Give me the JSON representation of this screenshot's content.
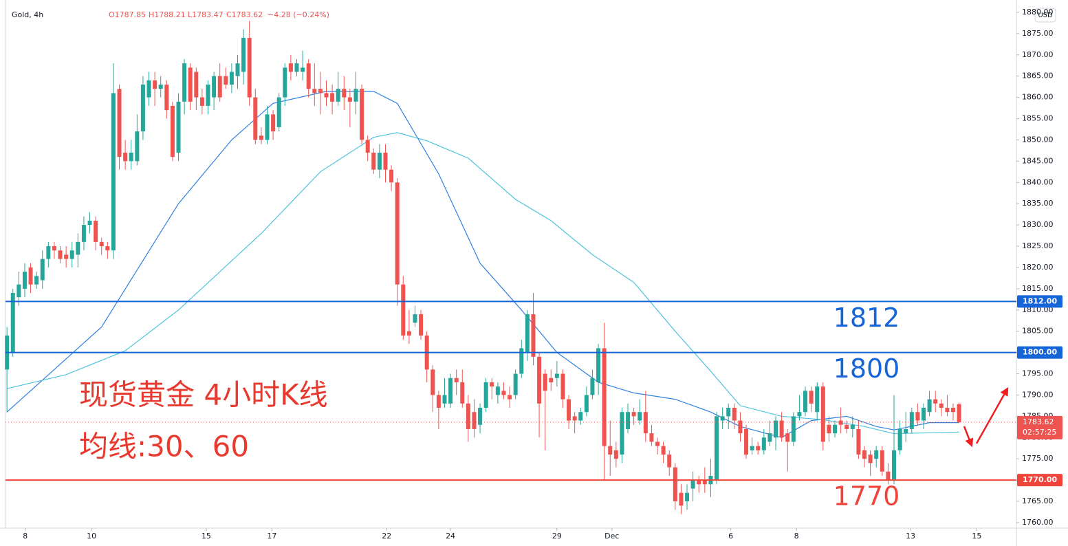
{
  "chart_data": {
    "type": "candlestick",
    "title": "Gold, 4h",
    "ohlc_legend": [
      "O1787.85",
      "H1788.21",
      "L1783.47",
      "C1783.62",
      "−4.28 (−0.24%)"
    ],
    "currency": "USD",
    "annotations": [
      "现货黄金 4小时K线",
      "均线:30、60"
    ],
    "up_color": "#26a69a",
    "down_color": "#ef5350",
    "grid": false,
    "xlim": [
      -0.25,
      170.7
    ],
    "ylim": [
      1758.7,
      1882.9
    ],
    "xticks": [
      {
        "value": 3.1,
        "label": "8"
      },
      {
        "value": 14.3,
        "label": "10"
      },
      {
        "value": 33.7,
        "label": "15"
      },
      {
        "value": 44.8,
        "label": "17"
      },
      {
        "value": 64.2,
        "label": "22"
      },
      {
        "value": 75,
        "label": "24"
      },
      {
        "value": 93,
        "label": "29"
      },
      {
        "value": 102.3,
        "label": "Dec"
      },
      {
        "value": 122.4,
        "label": "6"
      },
      {
        "value": 133.5,
        "label": "8"
      },
      {
        "value": 152.8,
        "label": "13"
      },
      {
        "value": 164,
        "label": "15"
      }
    ],
    "yticks": [
      {
        "value": 1760,
        "label": "1760.00"
      },
      {
        "value": 1765,
        "label": "1765.00"
      },
      {
        "value": 1770,
        "label": "1770.00"
      },
      {
        "value": 1775,
        "label": "1775.00"
      },
      {
        "value": 1780,
        "label": "1780.00"
      },
      {
        "value": 1785,
        "label": "1785.00"
      },
      {
        "value": 1790,
        "label": "1790.00"
      },
      {
        "value": 1795,
        "label": "1795.00"
      },
      {
        "value": 1800,
        "label": "1800.00"
      },
      {
        "value": 1805,
        "label": "1805.00"
      },
      {
        "value": 1810,
        "label": "1810.00"
      },
      {
        "value": 1815,
        "label": "1815.00"
      },
      {
        "value": 1820,
        "label": "1820.00"
      },
      {
        "value": 1825,
        "label": "1825.00"
      },
      {
        "value": 1830,
        "label": "1830.00"
      },
      {
        "value": 1835,
        "label": "1835.00"
      },
      {
        "value": 1840,
        "label": "1840.00"
      },
      {
        "value": 1845,
        "label": "1845.00"
      },
      {
        "value": 1850,
        "label": "1850.00"
      },
      {
        "value": 1855,
        "label": "1855.00"
      },
      {
        "value": 1860,
        "label": "1860.00"
      },
      {
        "value": 1865,
        "label": "1865.00"
      },
      {
        "value": 1870,
        "label": "1870.00"
      },
      {
        "value": 1875,
        "label": "1875.00"
      },
      {
        "value": 1880,
        "label": "1880.00"
      }
    ],
    "x": [
      0,
      1,
      2,
      3,
      4,
      5,
      6,
      7,
      8,
      9,
      10,
      11,
      12,
      13,
      14,
      15,
      16,
      17,
      18,
      19,
      20,
      21,
      22,
      23,
      24,
      25,
      26,
      27,
      28,
      29,
      30,
      31,
      32,
      33,
      34,
      35,
      36,
      37,
      38,
      39,
      40,
      41,
      42,
      43,
      44,
      45,
      46,
      47,
      48,
      49,
      50,
      51,
      52,
      53,
      54,
      55,
      56,
      57,
      58,
      59,
      60,
      61,
      62,
      63,
      64,
      65,
      66,
      67,
      68,
      69,
      70,
      71,
      72,
      73,
      74,
      75,
      76,
      77,
      78,
      79,
      80,
      81,
      82,
      83,
      84,
      85,
      86,
      87,
      88,
      89,
      90,
      91,
      92,
      93,
      94,
      95,
      96,
      97,
      98,
      99,
      100,
      101,
      102,
      103,
      104,
      105,
      106,
      107,
      108,
      109,
      110,
      111,
      112,
      113,
      114,
      115,
      116,
      117,
      118,
      119,
      120,
      121,
      122,
      123,
      124,
      125,
      126,
      127,
      128,
      129,
      130,
      131,
      132,
      133,
      134,
      135,
      136,
      137,
      138,
      139,
      140,
      141,
      142,
      143,
      144,
      145,
      146,
      147,
      148,
      149,
      150,
      151,
      152,
      153,
      154,
      155,
      156,
      157,
      158,
      159,
      160,
      161
    ],
    "open": [
      1796,
      1800,
      1813,
      1815,
      1820,
      1816,
      1817,
      1822,
      1825,
      1824,
      1823,
      1822,
      1823,
      1826,
      1830,
      1831,
      1826,
      1825,
      1824,
      1862,
      1847,
      1845,
      1845,
      1852,
      1860,
      1864,
      1862,
      1863,
      1858,
      1847,
      1859,
      1867,
      1866,
      1860,
      1858,
      1860,
      1865,
      1865,
      1863,
      1865,
      1866,
      1874,
      1860,
      1851,
      1850,
      1856,
      1853,
      1860,
      1868,
      1866,
      1866,
      1868,
      1862,
      1862,
      1861,
      1861,
      1859,
      1862,
      1860,
      1859,
      1862,
      1850,
      1847,
      1843,
      1847,
      1843,
      1840,
      1816,
      1805,
      1807,
      1809,
      1804,
      1796,
      1790,
      1788,
      1788,
      1794,
      1793,
      1788,
      1786,
      1783,
      1787,
      1793,
      1790,
      1791,
      1790,
      1790,
      1795,
      1800,
      1809,
      1799,
      1795,
      1794,
      1794,
      1795,
      1789,
      1785,
      1784,
      1786,
      1790,
      1793,
      1801,
      1778,
      1777,
      1776,
      1782,
      1786,
      1784,
      1786,
      1781,
      1779,
      1778,
      1776,
      1773,
      1767,
      1765,
      1768,
      1770,
      1770,
      1769,
      1770,
      1784,
      1785,
      1787,
      1784,
      1782,
      1777,
      1778,
      1777,
      1779,
      1780,
      1784,
      1781,
      1779,
      1785,
      1786,
      1791,
      1786,
      1792,
      1783,
      1781,
      1784,
      1783,
      1782,
      1782,
      1777,
      1776,
      1775,
      1777,
      1772,
      1770,
      1777,
      1781,
      1782,
      1786,
      1784,
      1786,
      1789,
      1788,
      1787,
      1787,
      1787.85
    ],
    "high": [
      1806,
      1815,
      1819,
      1821,
      1821,
      1819,
      1824,
      1826,
      1826,
      1825,
      1825,
      1826,
      1828,
      1832,
      1833,
      1832,
      1827,
      1826,
      1868,
      1863,
      1850,
      1850,
      1856,
      1865,
      1866,
      1866,
      1865,
      1864,
      1859,
      1861,
      1869,
      1868,
      1867,
      1862,
      1864,
      1866,
      1868,
      1867,
      1868,
      1870,
      1876,
      1878,
      1862,
      1853,
      1858,
      1857,
      1861,
      1868,
      1870,
      1869,
      1871,
      1869,
      1868,
      1866,
      1864,
      1863,
      1866,
      1865,
      1862,
      1866,
      1863,
      1851,
      1848,
      1849,
      1849,
      1844,
      1841,
      1818,
      1810,
      1811,
      1810,
      1805,
      1797,
      1791,
      1794,
      1795,
      1796,
      1796,
      1790,
      1789,
      1788,
      1794,
      1794,
      1793,
      1793,
      1792,
      1796,
      1803,
      1810,
      1814,
      1800,
      1796,
      1796,
      1798,
      1796,
      1790,
      1786,
      1787,
      1792,
      1796,
      1802,
      1807,
      1784,
      1779,
      1787,
      1788,
      1787,
      1789,
      1791,
      1783,
      1780,
      1779,
      1777,
      1774,
      1769,
      1769,
      1772,
      1771,
      1773,
      1775,
      1786,
      1787,
      1788,
      1788,
      1786,
      1783,
      1780,
      1779,
      1782,
      1784,
      1785,
      1786,
      1782,
      1786,
      1790,
      1792,
      1792,
      1793,
      1793,
      1785,
      1784,
      1787,
      1784,
      1785,
      1784,
      1778,
      1777,
      1778,
      1778,
      1774,
      1790,
      1784,
      1786,
      1787,
      1788,
      1788,
      1791,
      1791,
      1789,
      1790,
      1788,
      1788.21
    ],
    "low": [
      1786,
      1799,
      1811,
      1813,
      1814,
      1815,
      1815,
      1820,
      1822,
      1821,
      1820,
      1820,
      1820,
      1824,
      1828,
      1824,
      1823,
      1822,
      1822,
      1843,
      1843,
      1843,
      1844,
      1850,
      1858,
      1858,
      1860,
      1855,
      1845,
      1845,
      1856,
      1857,
      1857,
      1856,
      1856,
      1857,
      1859,
      1862,
      1861,
      1862,
      1863,
      1858,
      1849,
      1849,
      1849,
      1850,
      1852,
      1858,
      1864,
      1865,
      1864,
      1860,
      1858,
      1856,
      1858,
      1856,
      1858,
      1857,
      1853,
      1856,
      1849,
      1845,
      1842,
      1841,
      1840,
      1838,
      1811,
      1803,
      1802,
      1806,
      1803,
      1793,
      1786,
      1782,
      1787,
      1787,
      1790,
      1787,
      1779,
      1780,
      1781,
      1786,
      1789,
      1788,
      1789,
      1787,
      1789,
      1794,
      1798,
      1797,
      1780,
      1777,
      1791,
      1792,
      1787,
      1782,
      1781,
      1783,
      1785,
      1789,
      1790,
      1770,
      1771,
      1773,
      1774,
      1781,
      1783,
      1783,
      1779,
      1778,
      1776,
      1774,
      1771,
      1763,
      1762,
      1763,
      1765,
      1767,
      1767,
      1766,
      1769,
      1782,
      1782,
      1782,
      1779,
      1775,
      1776,
      1776,
      1776,
      1778,
      1777,
      1779,
      1772,
      1778,
      1784,
      1785,
      1786,
      1784,
      1777,
      1779,
      1780,
      1781,
      1781,
      1780,
      1775,
      1773,
      1771,
      1773,
      1771,
      1769,
      1769,
      1776,
      1779,
      1781,
      1783,
      1782,
      1785,
      1786,
      1785,
      1785,
      1784,
      1783.47
    ],
    "close": [
      1804,
      1814,
      1816,
      1819,
      1816,
      1818,
      1822,
      1825,
      1824,
      1822,
      1822,
      1824,
      1826,
      1830,
      1831,
      1826,
      1825,
      1824,
      1861,
      1846,
      1845,
      1847,
      1852,
      1863,
      1864,
      1862,
      1863,
      1857,
      1846,
      1859,
      1868,
      1859,
      1860,
      1858,
      1863,
      1865,
      1860,
      1863,
      1866,
      1868,
      1874,
      1860,
      1850,
      1850,
      1856,
      1852,
      1860,
      1867,
      1866,
      1868,
      1867,
      1862,
      1861,
      1861,
      1860,
      1859,
      1862,
      1860,
      1859,
      1862,
      1850,
      1847,
      1843,
      1847,
      1843,
      1840,
      1816,
      1804,
      1804,
      1809,
      1804,
      1796,
      1790,
      1787,
      1790,
      1794,
      1793,
      1788,
      1782,
      1782,
      1787,
      1793,
      1792,
      1792,
      1790,
      1789,
      1795,
      1801,
      1809,
      1799,
      1788,
      1791,
      1793,
      1795,
      1789,
      1784,
      1784,
      1786,
      1790,
      1794,
      1801,
      1778,
      1776,
      1775,
      1786,
      1786,
      1785,
      1786,
      1781,
      1779,
      1778,
      1776,
      1773,
      1765,
      1764,
      1767,
      1770,
      1769,
      1769,
      1771,
      1785,
      1785,
      1787,
      1784,
      1781,
      1776,
      1778,
      1777,
      1780,
      1781,
      1784,
      1780,
      1779,
      1785,
      1786,
      1791,
      1788,
      1792,
      1779,
      1781,
      1783,
      1783,
      1782,
      1783,
      1776,
      1775,
      1774,
      1777,
      1772,
      1770,
      1777,
      1782,
      1782,
      1786,
      1784,
      1787,
      1789,
      1788,
      1787,
      1786,
      1786,
      1783.62
    ],
    "series": [
      {
        "color": "#2e7fe0",
        "x": [
          0,
          16,
          29,
          38,
          45,
          54,
          62,
          66,
          73,
          80,
          87,
          93,
          100,
          106,
          113,
          119,
          124,
          131,
          136,
          142,
          147,
          150,
          156,
          161
        ],
        "values": [
          1786,
          1806,
          1835,
          1850,
          1858.6,
          1861.4,
          1861.4,
          1858.6,
          1842,
          1821,
          1810,
          1800,
          1793,
          1790.5,
          1789,
          1786,
          1782.6,
          1780,
          1784,
          1785,
          1782.6,
          1781.8,
          1783.5,
          1783.5
        ]
      },
      {
        "color": "#4fc3dd",
        "x": [
          0,
          10,
          20,
          29,
          43,
          53,
          62,
          66,
          71,
          78,
          86,
          92,
          99,
          106,
          113,
          119,
          124,
          131,
          138,
          145,
          150,
          161
        ],
        "values": [
          1791.5,
          1794.8,
          1800.4,
          1810,
          1828,
          1842.5,
          1850.6,
          1851.7,
          1849.8,
          1845.7,
          1836,
          1831,
          1823,
          1816.5,
          1805,
          1795.6,
          1787.5,
          1785,
          1784.2,
          1782.6,
          1780.9,
          1781.3
        ]
      }
    ],
    "levels": [
      {
        "value": 1812,
        "label": "1812.00",
        "annotation": "1812",
        "color": "#1565d8"
      },
      {
        "value": 1800,
        "label": "1800.00",
        "annotation": "1800",
        "color": "#1565d8"
      },
      {
        "value": 1770,
        "label": "1770.00",
        "annotation": "1770",
        "color": "#f0443a"
      }
    ],
    "price_line": {
      "value": 1783.62,
      "label": "1783.62",
      "countdown": "02:57:25",
      "color": "#ef5350"
    }
  }
}
